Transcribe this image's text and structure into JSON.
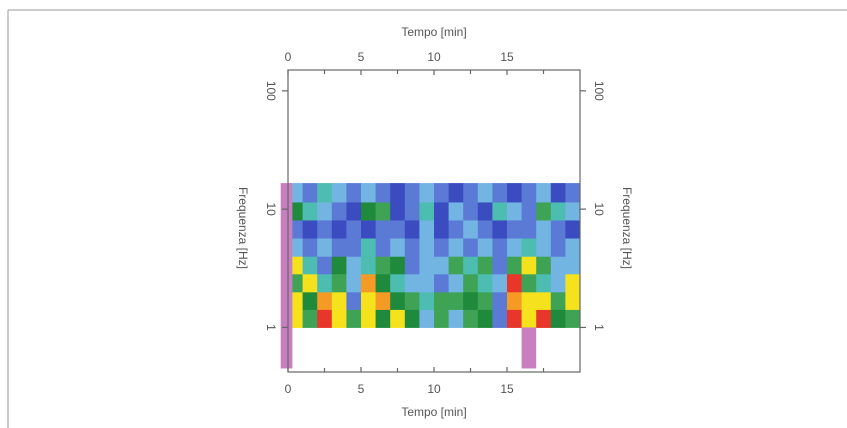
{
  "chart_data": {
    "type": "heatmap",
    "x_label": "Tempo [min]",
    "y_label": "Frequenza [Hz]",
    "xlim": [
      0,
      20
    ],
    "xticks": [
      0,
      5,
      10,
      15
    ],
    "xminorticks": [
      2.5,
      7.5,
      12.5,
      17.5
    ],
    "ylim": [
      0.42,
      150
    ],
    "yticks": [
      1,
      10,
      100
    ],
    "log_y": true,
    "x_edges": [
      0,
      1,
      2,
      3,
      4,
      5,
      6,
      7,
      8,
      9,
      10,
      11,
      12,
      13,
      14,
      15,
      16,
      17,
      18,
      19,
      20
    ],
    "y_edges": [
      1,
      1.42,
      2.0,
      2.84,
      4.0,
      5.7,
      8.1,
      11.5,
      16.6
    ],
    "colorscale": [
      "#3a4cc0",
      "#5b7ad6",
      "#72b4e2",
      "#4cbdb0",
      "#3ea354",
      "#1f8a3c",
      "#f5e21c",
      "#f59a24",
      "#e8372a"
    ],
    "values": [
      [
        6,
        4,
        8,
        6,
        4,
        6,
        5,
        6,
        5,
        2,
        4,
        2,
        4,
        5,
        1,
        8,
        6,
        8,
        5,
        4
      ],
      [
        6,
        5,
        7,
        6,
        1,
        6,
        7,
        5,
        4,
        3,
        4,
        4,
        5,
        4,
        1,
        7,
        6,
        6,
        4,
        6
      ],
      [
        4,
        6,
        3,
        4,
        2,
        7,
        5,
        3,
        2,
        2,
        1,
        2,
        4,
        3,
        2,
        8,
        4,
        3,
        2,
        6
      ],
      [
        6,
        3,
        1,
        5,
        2,
        3,
        4,
        5,
        1,
        2,
        2,
        4,
        3,
        4,
        1,
        4,
        6,
        4,
        2,
        2
      ],
      [
        2,
        1,
        2,
        1,
        1,
        3,
        1,
        2,
        1,
        2,
        1,
        2,
        1,
        2,
        1,
        2,
        3,
        2,
        1,
        2
      ],
      [
        1,
        0,
        1,
        0,
        1,
        0,
        1,
        1,
        0,
        2,
        0,
        1,
        2,
        1,
        0,
        1,
        1,
        2,
        1,
        0
      ],
      [
        5,
        3,
        2,
        1,
        0,
        5,
        4,
        0,
        1,
        3,
        0,
        2,
        1,
        0,
        3,
        2,
        1,
        4,
        3,
        2
      ],
      [
        2,
        1,
        3,
        2,
        1,
        2,
        1,
        0,
        1,
        2,
        1,
        0,
        1,
        2,
        1,
        0,
        1,
        2,
        0,
        1
      ]
    ],
    "events": {
      "color": "#c77fc0",
      "x_start": [
        -0.5,
        16
      ],
      "x_end": [
        0.3,
        17
      ],
      "y_bottom": [
        0.45,
        0.45
      ],
      "y_top": [
        16.6,
        1
      ]
    }
  }
}
